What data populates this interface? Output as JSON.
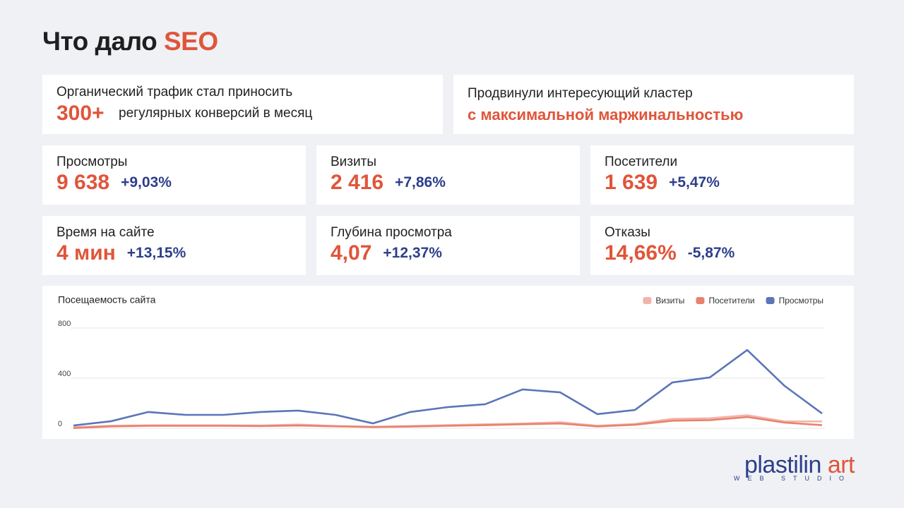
{
  "title": {
    "text": "Что дало",
    "highlight": "SEO"
  },
  "highlights": [
    {
      "text": "Органический трафик стал приносить",
      "value": "300+",
      "note": "регулярных конверсий в месяц"
    },
    {
      "text": "Продвинули интересующий кластер",
      "accent": "с максимальной маржинальностью"
    }
  ],
  "metrics": [
    {
      "label": "Просмотры",
      "value": "9 638",
      "change": "+9,03%"
    },
    {
      "label": "Визиты",
      "value": "2 416",
      "change": "+7,86%"
    },
    {
      "label": "Посетители",
      "value": "1 639",
      "change": "+5,47%"
    },
    {
      "label": "Время на сайте",
      "value": "4 мин",
      "change": "+13,15%"
    },
    {
      "label": "Глубина просмотра",
      "value": "4,07",
      "change": "+12,37%"
    },
    {
      "label": "Отказы",
      "value": "14,66%",
      "change": "-5,87%"
    }
  ],
  "chart_data": {
    "type": "line",
    "title": "Посещаемость сайта",
    "categories": [
      null,
      null,
      null,
      null,
      null,
      null,
      null,
      null,
      null,
      null,
      null,
      null,
      null,
      null,
      null,
      null,
      null,
      null,
      null,
      null,
      null
    ],
    "series": [
      {
        "name": "Визиты",
        "color": "#f4b3aa",
        "values": [
          8,
          20,
          24,
          24,
          24,
          22,
          30,
          18,
          12,
          18,
          25,
          32,
          38,
          48,
          20,
          35,
          75,
          80,
          105,
          55,
          55
        ]
      },
      {
        "name": "Посетители",
        "color": "#e8826e",
        "values": [
          2,
          15,
          20,
          20,
          20,
          18,
          22,
          16,
          10,
          14,
          20,
          25,
          32,
          38,
          15,
          28,
          60,
          65,
          90,
          45,
          25
        ]
      },
      {
        "name": "Просмотры",
        "color": "#5b75b8",
        "values": [
          22,
          56,
          130,
          107,
          107,
          130,
          141,
          107,
          39,
          130,
          169,
          192,
          310,
          287,
          113,
          146,
          366,
          406,
          625,
          338,
          118
        ]
      }
    ],
    "ylim": [
      0,
      800
    ],
    "yticks": [
      0,
      400,
      800
    ],
    "grid": true,
    "legend": "top-right"
  },
  "logo": {
    "name": "plastilin",
    "accent": "art",
    "sub": "WEB STUDIO"
  }
}
